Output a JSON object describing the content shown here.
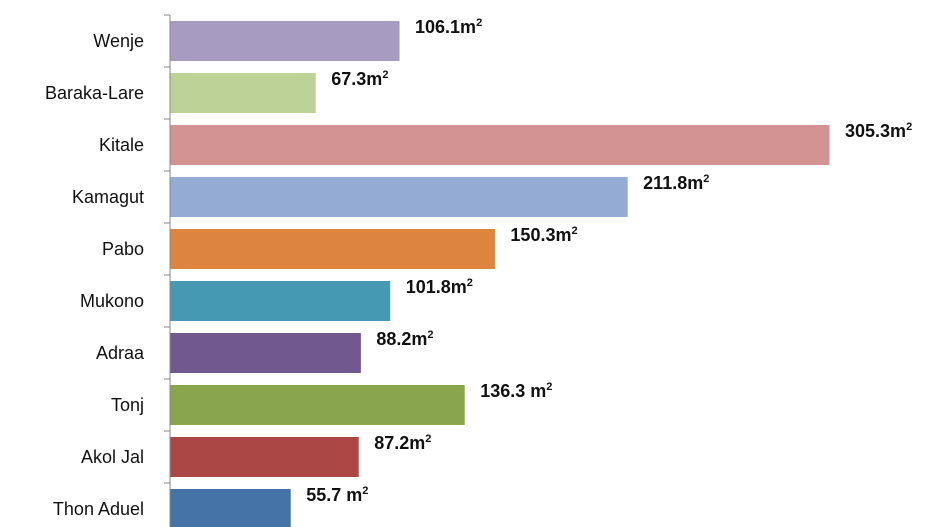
{
  "chart_data": {
    "type": "bar",
    "orientation": "horizontal",
    "categories": [
      "Wenje",
      "Baraka-Lare",
      "Kitale",
      "Kamagut",
      "Pabo",
      "Mukono",
      "Adraa",
      "Tonj",
      "Akol Jal",
      "Thon Aduel"
    ],
    "values": [
      106.1,
      67.3,
      305.3,
      211.8,
      150.3,
      101.8,
      88.2,
      136.3,
      87.2,
      55.7
    ],
    "data_labels": [
      "106.1m",
      "67.3m",
      "305.3m",
      "211.8m",
      "150.3m",
      "101.8m",
      "88.2m",
      "136.3 m",
      "87.2m",
      "55.7 m"
    ],
    "unit_superscript": "2",
    "colors": [
      "#a89bc2",
      "#bcd296",
      "#d39393",
      "#94abd3",
      "#dd853e",
      "#4599b2",
      "#715990",
      "#89a54e",
      "#ab4745",
      "#4572a7"
    ],
    "title": "",
    "xlabel": "",
    "ylabel": "",
    "xlim": [
      0,
      305.3
    ],
    "grid": false,
    "legend": "none"
  }
}
